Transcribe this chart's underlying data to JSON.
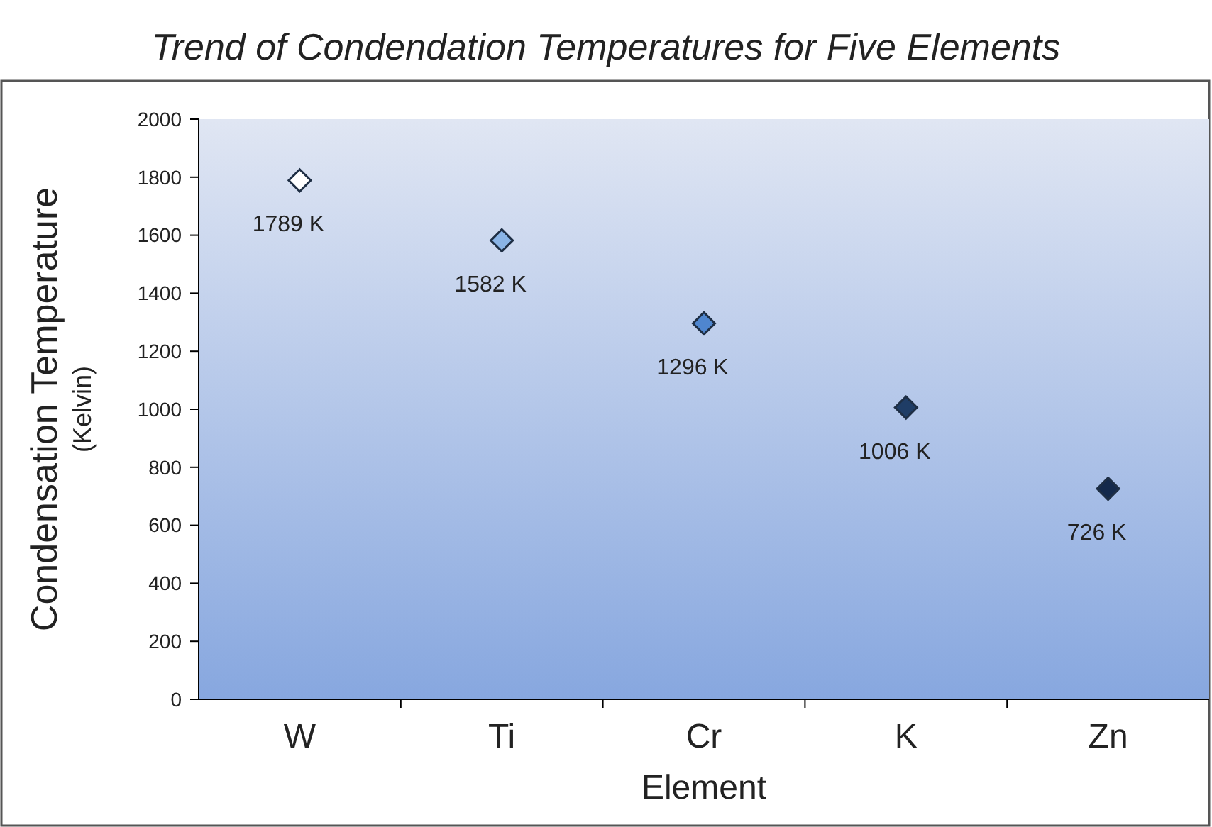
{
  "chart_data": {
    "type": "scatter",
    "title": "Trend of Condendation Temperatures for Five Elements",
    "xlabel": "Element",
    "ylabel": "Condensation Temperature\n(Kelvin)",
    "categories": [
      "W",
      "Ti",
      "Cr",
      "K",
      "Zn"
    ],
    "values": [
      1789,
      1582,
      1296,
      1006,
      726
    ],
    "value_labels": [
      "1789 K",
      "1582 K",
      "1296 K",
      "1006 K",
      "726 K"
    ],
    "colors": [
      "#ffffff",
      "#8ab4e6",
      "#4f86cf",
      "#1f3d66",
      "#14294b"
    ],
    "ylim": [
      0,
      2000
    ],
    "yticks": [
      0,
      200,
      400,
      600,
      800,
      1000,
      1200,
      1400,
      1600,
      1800,
      2000
    ],
    "marker": "diamond",
    "grid": false
  }
}
